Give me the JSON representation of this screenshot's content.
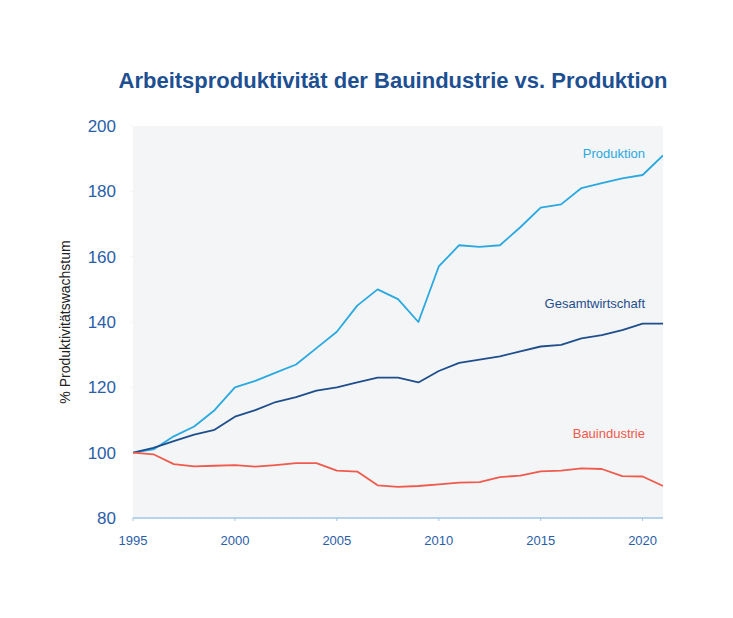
{
  "chart_data": {
    "type": "line",
    "title": "Arbeitsproduktivität der Bauindustrie vs. Produktion",
    "y_label": "% Produktivitätswachstum",
    "x": [
      1995,
      1996,
      1997,
      1998,
      1999,
      2000,
      2001,
      2002,
      2003,
      2004,
      2005,
      2006,
      2007,
      2008,
      2009,
      2010,
      2011,
      2012,
      2013,
      2014,
      2015,
      2016,
      2017,
      2018,
      2019,
      2020,
      2021
    ],
    "series": [
      {
        "name": "Produktion",
        "color": "#29a9e0",
        "values": [
          100,
          101,
          105,
          108,
          113,
          120,
          122,
          124.5,
          127,
          132,
          137,
          145,
          150,
          147,
          140,
          157,
          163.5,
          163,
          163.5,
          169,
          175,
          176,
          181,
          182.5,
          184,
          185,
          191
        ]
      },
      {
        "name": "Gesamtwirtschaft",
        "color": "#1f4e8c",
        "values": [
          100,
          101.5,
          103.5,
          105.5,
          107,
          111,
          113,
          115.5,
          117,
          119,
          120,
          121.5,
          123,
          123,
          121.5,
          125,
          127.5,
          128.5,
          129.5,
          131,
          132.5,
          133,
          135,
          136,
          137.5,
          139.5,
          139.5
        ]
      },
      {
        "name": "Bauindustrie",
        "color": "#ef5a4c",
        "values": [
          100,
          99.5,
          96.5,
          95.8,
          96,
          96.2,
          95.7,
          96.2,
          96.8,
          96.8,
          94.5,
          94.2,
          90,
          89.5,
          89.8,
          90.3,
          90.8,
          91,
          92.5,
          93,
          94.3,
          94.5,
          95.2,
          95,
          92.8,
          92.7,
          89.8
        ]
      }
    ],
    "xlim": [
      1995,
      2021
    ],
    "xticks": [
      1995,
      2000,
      2005,
      2010,
      2015,
      2020
    ],
    "ylim": [
      80,
      200
    ],
    "yticks": [
      80,
      100,
      120,
      140,
      160,
      180,
      200
    ],
    "grid": false
  }
}
